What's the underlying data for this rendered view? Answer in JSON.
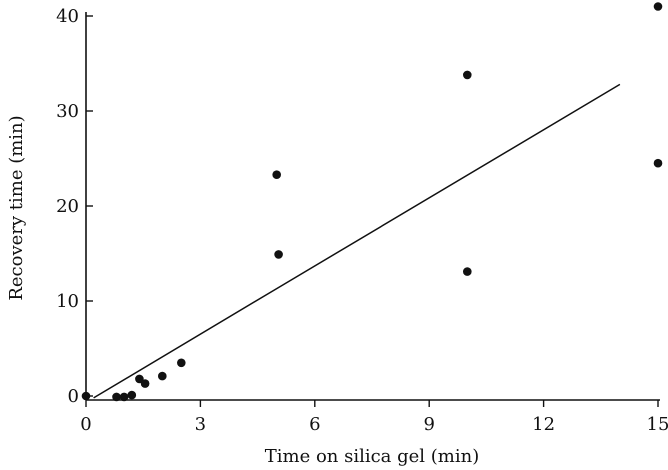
{
  "chart_data": {
    "type": "scatter",
    "title": "",
    "xlabel": "Time on silica gel (min)",
    "ylabel": "Recovery time (min)",
    "xlim": [
      0,
      15
    ],
    "ylim": [
      0,
      40
    ],
    "xticks": [
      0,
      3,
      6,
      9,
      12,
      15
    ],
    "yticks": [
      0,
      10,
      20,
      30,
      40
    ],
    "xtick_labels": [
      "0",
      "3",
      "6",
      "9",
      "12",
      "15"
    ],
    "ytick_labels": [
      "0",
      "10",
      "20",
      "30",
      "40"
    ],
    "grid": false,
    "legend": "none",
    "series": [
      {
        "points": [
          {
            "x": 0,
            "y": 0
          },
          {
            "x": 0.8,
            "y": -0.1
          },
          {
            "x": 1.0,
            "y": -0.1
          },
          {
            "x": 1.2,
            "y": 0.1
          },
          {
            "x": 1.4,
            "y": 1.8
          },
          {
            "x": 1.55,
            "y": 1.3
          },
          {
            "x": 2.0,
            "y": 2.1
          },
          {
            "x": 2.5,
            "y": 3.5
          },
          {
            "x": 5.0,
            "y": 23.3
          },
          {
            "x": 5.05,
            "y": 14.9
          },
          {
            "x": 10.0,
            "y": 33.8
          },
          {
            "x": 10.0,
            "y": 13.1
          },
          {
            "x": 15.0,
            "y": 41.0
          },
          {
            "x": 15.0,
            "y": 24.5
          }
        ]
      }
    ],
    "fit_line": {
      "points": [
        {
          "x": 0.2,
          "y": -0.2
        },
        {
          "x": 5.0,
          "y": 11.3
        },
        {
          "x": 14.0,
          "y": 32.8
        }
      ]
    },
    "colors": {
      "ink": "#111111",
      "background": "#ffffff"
    }
  }
}
